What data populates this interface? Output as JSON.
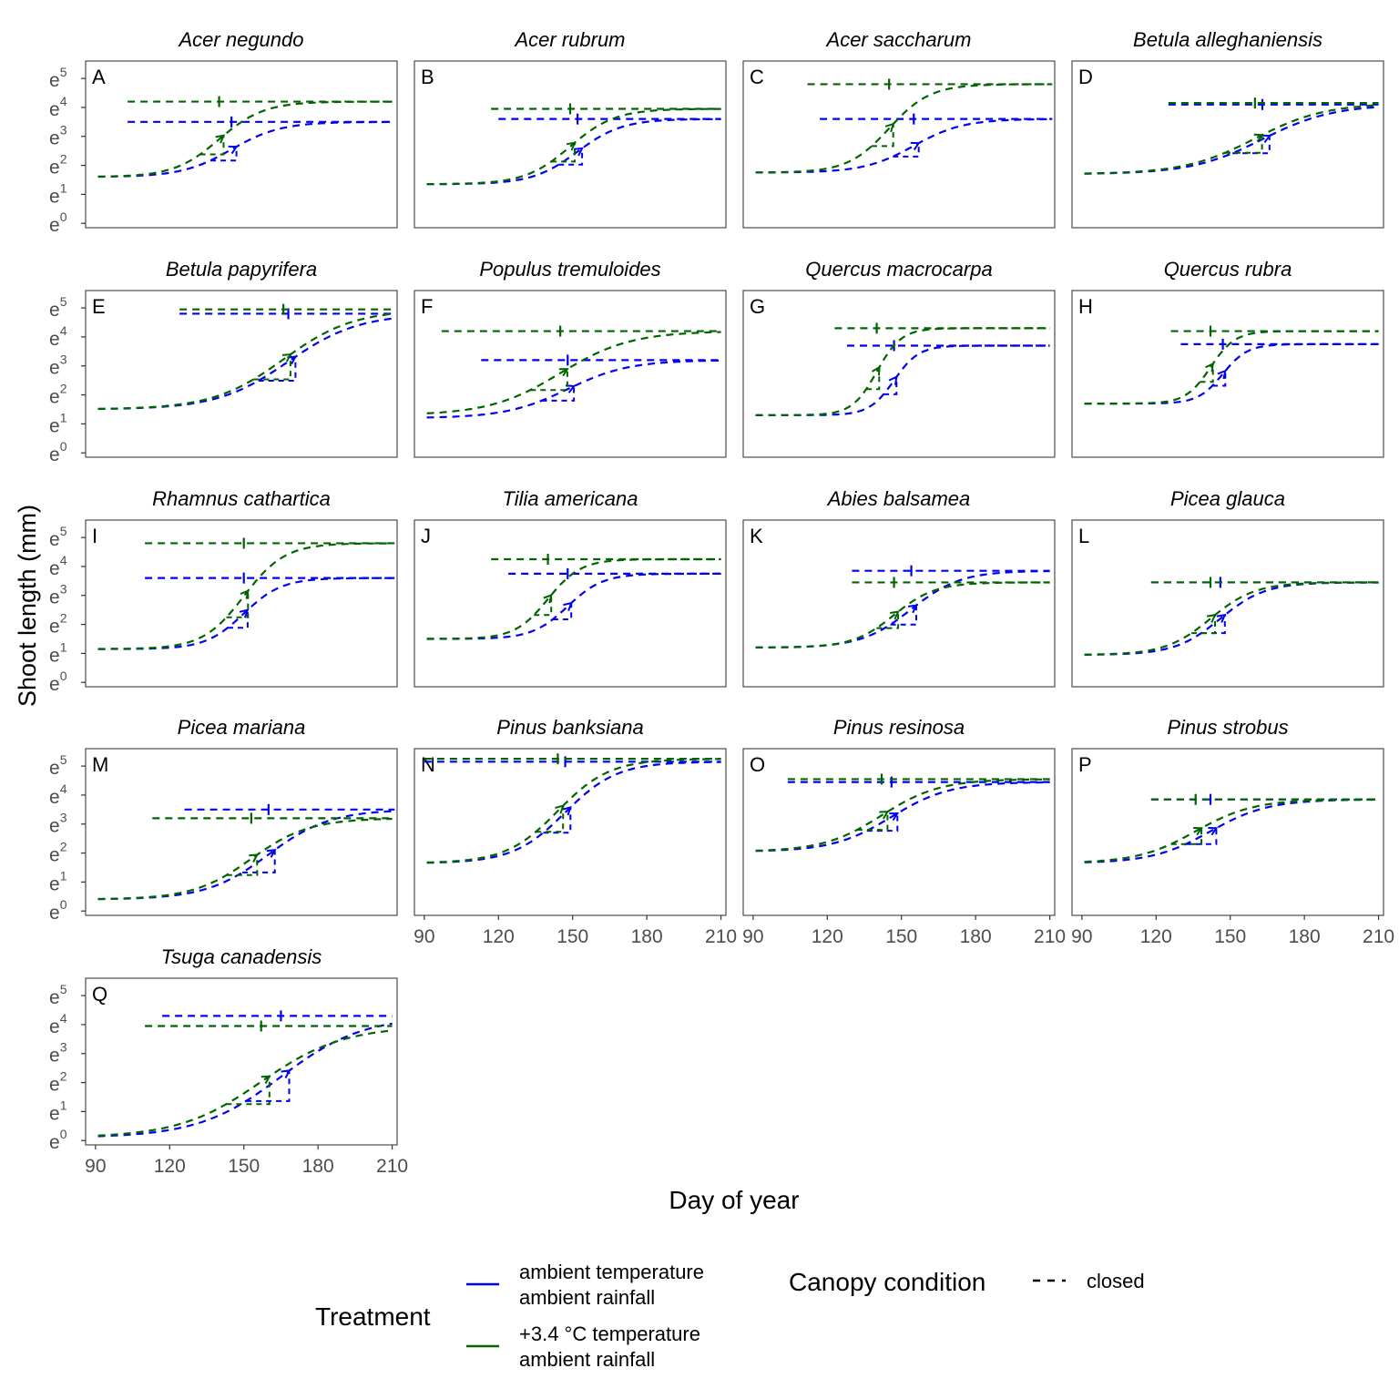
{
  "figure": {
    "ylabel": "Shoot length (mm)",
    "xlabel": "Day of year",
    "colors": {
      "ambient": "#0000ee",
      "warmed": "#006400",
      "panel_border": "#4d4d4d",
      "tick_text": "#4d4d4d"
    },
    "legend": {
      "treatment_title": "Treatment",
      "items": [
        {
          "key": "ambient",
          "line1": "ambient temperature",
          "line2": "ambient rainfall",
          "color": "#0000ee"
        },
        {
          "key": "warmed",
          "line1": "+3.4 °C temperature",
          "line2": "ambient rainfall",
          "color": "#006400"
        }
      ],
      "canopy_title": "Canopy condition",
      "canopy_item": "closed"
    }
  },
  "chart_data": {
    "type": "line",
    "x_axis": {
      "lim": [
        86,
        212
      ],
      "ticks": [
        90,
        120,
        150,
        180,
        210
      ]
    },
    "y_axis": {
      "scale": "ln",
      "lim": [
        -0.15,
        5.6
      ],
      "ticks": [
        0,
        1,
        2,
        3,
        4,
        5
      ],
      "tick_base": "e"
    },
    "line_style": "dashed",
    "panels": [
      {
        "letter": "A",
        "species": "Acer negundo",
        "ambient": {
          "start": 1.6,
          "asym": 3.5,
          "mid": 145,
          "k": 0.1,
          "plateau_from": 103,
          "plateau_to": 211
        },
        "warmed": {
          "start": 1.6,
          "asym": 4.2,
          "mid": 140,
          "k": 0.11,
          "plateau_from": 103,
          "plateau_to": 211
        }
      },
      {
        "letter": "B",
        "species": "Acer rubrum",
        "ambient": {
          "start": 1.35,
          "asym": 3.6,
          "mid": 152,
          "k": 0.11,
          "plateau_from": 120,
          "plateau_to": 210
        },
        "warmed": {
          "start": 1.35,
          "asym": 3.95,
          "mid": 149,
          "k": 0.11,
          "plateau_from": 117,
          "plateau_to": 210
        }
      },
      {
        "letter": "C",
        "species": "Acer saccharum",
        "ambient": {
          "start": 1.75,
          "asym": 3.6,
          "mid": 155,
          "k": 0.1,
          "plateau_from": 117,
          "plateau_to": 211
        },
        "warmed": {
          "start": 1.75,
          "asym": 4.8,
          "mid": 145,
          "k": 0.12,
          "plateau_from": 112,
          "plateau_to": 211
        }
      },
      {
        "letter": "D",
        "species": "Betula alleghaniensis",
        "ambient": {
          "start": 1.7,
          "asym": 4.1,
          "mid": 163,
          "k": 0.07,
          "plateau_from": 125,
          "plateau_to": 210
        },
        "warmed": {
          "start": 1.7,
          "asym": 4.15,
          "mid": 160,
          "k": 0.07,
          "plateau_from": 125,
          "plateau_to": 210
        }
      },
      {
        "letter": "E",
        "species": "Betula papyrifera",
        "ambient": {
          "start": 1.5,
          "asym": 4.8,
          "mid": 168,
          "k": 0.07,
          "plateau_from": 124,
          "plateau_to": 210
        },
        "warmed": {
          "start": 1.5,
          "asym": 4.95,
          "mid": 166,
          "k": 0.07,
          "plateau_from": 124,
          "plateau_to": 210
        }
      },
      {
        "letter": "F",
        "species": "Populus tremuloides",
        "ambient": {
          "start": 1.2,
          "asym": 3.2,
          "mid": 148,
          "k": 0.08,
          "plateau_from": 113,
          "plateau_to": 210
        },
        "warmed": {
          "start": 1.3,
          "asym": 4.2,
          "mid": 145,
          "k": 0.07,
          "plateau_from": 97,
          "plateau_to": 210
        }
      },
      {
        "letter": "G",
        "species": "Quercus macrocarpa",
        "ambient": {
          "start": 1.3,
          "asym": 3.7,
          "mid": 147,
          "k": 0.2,
          "plateau_from": 128,
          "plateau_to": 210
        },
        "warmed": {
          "start": 1.3,
          "asym": 4.3,
          "mid": 140,
          "k": 0.2,
          "plateau_from": 123,
          "plateau_to": 210
        }
      },
      {
        "letter": "H",
        "species": "Quercus rubra",
        "ambient": {
          "start": 1.7,
          "asym": 3.75,
          "mid": 147,
          "k": 0.2,
          "plateau_from": 130,
          "plateau_to": 210
        },
        "warmed": {
          "start": 1.7,
          "asym": 4.2,
          "mid": 142,
          "k": 0.2,
          "plateau_from": 126,
          "plateau_to": 210
        }
      },
      {
        "letter": "I",
        "species": "Rhamnus cathartica",
        "ambient": {
          "start": 1.15,
          "asym": 3.6,
          "mid": 150,
          "k": 0.13,
          "plateau_from": 110,
          "plateau_to": 211
        },
        "warmed": {
          "start": 1.15,
          "asym": 4.8,
          "mid": 150,
          "k": 0.12,
          "plateau_from": 110,
          "plateau_to": 211
        }
      },
      {
        "letter": "J",
        "species": "Tilia americana",
        "ambient": {
          "start": 1.5,
          "asym": 3.75,
          "mid": 148,
          "k": 0.14,
          "plateau_from": 124,
          "plateau_to": 210
        },
        "warmed": {
          "start": 1.5,
          "asym": 4.25,
          "mid": 140,
          "k": 0.15,
          "plateau_from": 117,
          "plateau_to": 210
        }
      },
      {
        "letter": "K",
        "species": "Abies balsamea",
        "ambient": {
          "start": 1.2,
          "asym": 3.85,
          "mid": 154,
          "k": 0.1,
          "plateau_from": 130,
          "plateau_to": 210
        },
        "warmed": {
          "start": 1.2,
          "asym": 3.45,
          "mid": 147,
          "k": 0.12,
          "plateau_from": 130,
          "plateau_to": 210
        }
      },
      {
        "letter": "L",
        "species": "Picea glauca",
        "ambient": {
          "start": 0.95,
          "asym": 3.45,
          "mid": 146,
          "k": 0.11,
          "plateau_from": 118,
          "plateau_to": 210
        },
        "warmed": {
          "start": 0.95,
          "asym": 3.45,
          "mid": 142,
          "k": 0.11,
          "plateau_from": 118,
          "plateau_to": 210
        }
      },
      {
        "letter": "M",
        "species": "Picea mariana",
        "ambient": {
          "start": 0.4,
          "asym": 3.5,
          "mid": 160,
          "k": 0.08,
          "plateau_from": 126,
          "plateau_to": 211
        },
        "warmed": {
          "start": 0.4,
          "asym": 3.2,
          "mid": 153,
          "k": 0.085,
          "plateau_from": 113,
          "plateau_to": 211
        }
      },
      {
        "letter": "N",
        "species": "Pinus banksiana",
        "ambient": {
          "start": 1.65,
          "asym": 5.15,
          "mid": 147,
          "k": 0.095,
          "plateau_from": 90,
          "plateau_to": 210
        },
        "warmed": {
          "start": 1.65,
          "asym": 5.25,
          "mid": 144,
          "k": 0.095,
          "plateau_from": 90,
          "plateau_to": 210
        }
      },
      {
        "letter": "O",
        "species": "Pinus resinosa",
        "ambient": {
          "start": 2.05,
          "asym": 4.45,
          "mid": 146,
          "k": 0.085,
          "plateau_from": 104,
          "plateau_to": 210
        },
        "warmed": {
          "start": 2.05,
          "asym": 4.55,
          "mid": 142,
          "k": 0.085,
          "plateau_from": 104,
          "plateau_to": 210
        }
      },
      {
        "letter": "P",
        "species": "Pinus strobus",
        "ambient": {
          "start": 1.65,
          "asym": 3.85,
          "mid": 142,
          "k": 0.085,
          "plateau_from": 118,
          "plateau_to": 210
        },
        "warmed": {
          "start": 1.65,
          "asym": 3.85,
          "mid": 136,
          "k": 0.085,
          "plateau_from": 118,
          "plateau_to": 210
        }
      },
      {
        "letter": "Q",
        "species": "Tsuga canadensis",
        "ambient": {
          "start": 0.1,
          "asym": 4.3,
          "mid": 165,
          "k": 0.06,
          "plateau_from": 117,
          "plateau_to": 210
        },
        "warmed": {
          "start": 0.1,
          "asym": 3.95,
          "mid": 157,
          "k": 0.06,
          "plateau_from": 110,
          "plateau_to": 210
        }
      }
    ]
  }
}
